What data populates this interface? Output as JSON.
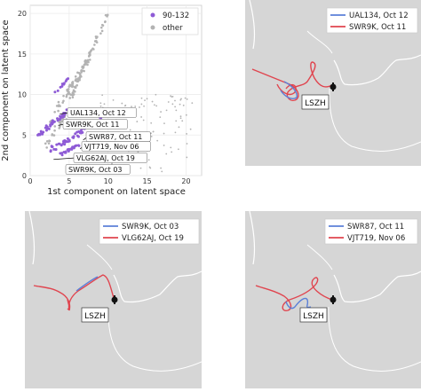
{
  "chart_data": [
    {
      "type": "scatter",
      "title": "",
      "xlabel": "1st component on latent space",
      "ylabel": "2nd component on latent space",
      "xlim": [
        0,
        22
      ],
      "ylim": [
        0,
        21
      ],
      "xticks": [
        "0",
        "5",
        "10",
        "15",
        "20"
      ],
      "yticks": [
        "0",
        "5",
        "10",
        "15",
        "20"
      ],
      "legend": {
        "placement": "top-right"
      },
      "series": [
        {
          "name": "other",
          "color": "#b3b3b3",
          "clusters": [
            {
              "from": [
                5.2,
                9.5
              ],
              "to": [
                10.0,
                20.0
              ],
              "spread": 0.35,
              "n": 70
            },
            {
              "from": [
                2.5,
                6.5
              ],
              "to": [
                7.5,
                14.5
              ],
              "spread": 0.45,
              "n": 55
            },
            {
              "from": [
                2.0,
                3.5
              ],
              "to": [
                4.5,
                7.5
              ],
              "spread": 0.6,
              "n": 25
            }
          ],
          "scatter_region": {
            "x": [
              9,
              21
            ],
            "y": [
              0.5,
              10
            ],
            "n": 120
          }
        },
        {
          "name": "90-132",
          "color": "#8e5bd6",
          "clusters": [
            {
              "from": [
                1.0,
                5.0
              ],
              "to": [
                5.0,
                8.0
              ],
              "spread": 0.45,
              "n": 45
            },
            {
              "from": [
                2.5,
                3.0
              ],
              "to": [
                9.0,
                7.0
              ],
              "spread": 0.45,
              "n": 55
            },
            {
              "from": [
                4.0,
                2.6
              ],
              "to": [
                6.5,
                4.0
              ],
              "spread": 0.35,
              "n": 25
            },
            {
              "from": [
                3.0,
                10.0
              ],
              "to": [
                5.0,
                12.0
              ],
              "spread": 0.3,
              "n": 10
            }
          ]
        }
      ],
      "annotations": [
        {
          "text": "UAL134, Oct 12",
          "point": [
            3.8,
            7.6
          ]
        },
        {
          "text": "SWR9K, Oct 11",
          "point": [
            3.6,
            6.2
          ]
        },
        {
          "text": "SWR87, Oct 11",
          "point": [
            6.8,
            4.4
          ]
        },
        {
          "text": "VJT719, Nov 06",
          "point": [
            6.4,
            3.3
          ]
        },
        {
          "text": "VLG62AJ, Oct 19",
          "point": [
            3.0,
            2.0
          ]
        },
        {
          "text": "SWR9K, Oct 03",
          "point": [
            5.0,
            1.0
          ]
        }
      ]
    },
    {
      "type": "line",
      "map": true,
      "airport": "LSZH",
      "legend": {
        "placement": "top-right"
      },
      "series": [
        {
          "name": "UAL134, Oct 12",
          "color": "#5b80d8"
        },
        {
          "name": "SWR9K, Oct 11",
          "color": "#e0454f"
        }
      ]
    },
    {
      "type": "line",
      "map": true,
      "airport": "LSZH",
      "legend": {
        "placement": "top-right"
      },
      "series": [
        {
          "name": "SWR9K, Oct 03",
          "color": "#5b80d8"
        },
        {
          "name": "VLG62AJ, Oct 19",
          "color": "#e0454f"
        }
      ]
    },
    {
      "type": "line",
      "map": true,
      "airport": "LSZH",
      "legend": {
        "placement": "top-right"
      },
      "series": [
        {
          "name": "SWR87, Oct 11",
          "color": "#5b80d8"
        },
        {
          "name": "VJT719, Nov 06",
          "color": "#e0454f"
        }
      ]
    }
  ]
}
